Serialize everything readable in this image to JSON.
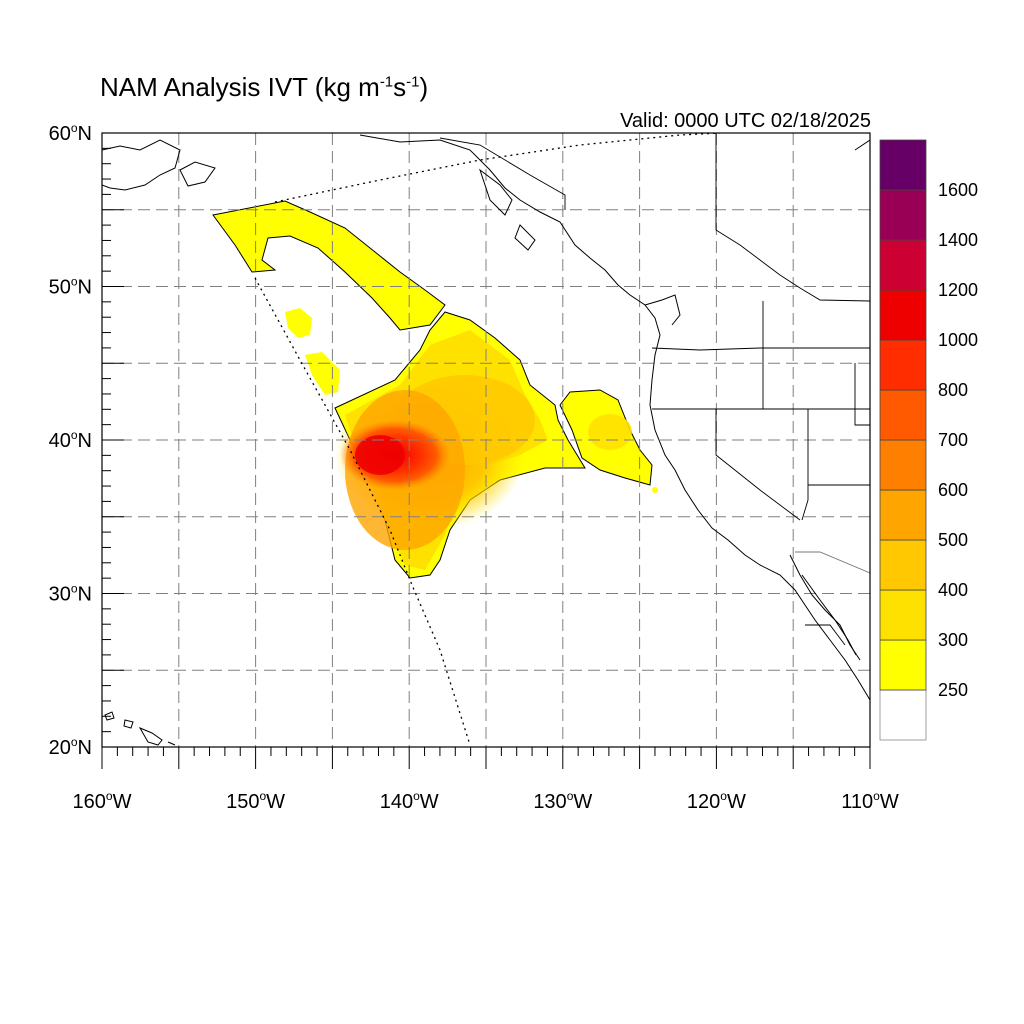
{
  "title": {
    "main": "NAM Analysis IVT (kg m",
    "sup1": "-1",
    "mid": "s",
    "sup2": "-1",
    "end": ")"
  },
  "valid_label": "Valid: 0000 UTC 02/18/2025",
  "map": {
    "lon_range": [
      -160,
      -110
    ],
    "lat_range": [
      20,
      60
    ],
    "grid": true,
    "lon_ticks": [
      {
        "value": -160,
        "label": "160",
        "suffix": "W"
      },
      {
        "value": -150,
        "label": "150",
        "suffix": "W"
      },
      {
        "value": -140,
        "label": "140",
        "suffix": "W"
      },
      {
        "value": -130,
        "label": "130",
        "suffix": "W"
      },
      {
        "value": -120,
        "label": "120",
        "suffix": "W"
      },
      {
        "value": -110,
        "label": "110",
        "suffix": "W"
      }
    ],
    "lat_ticks": [
      {
        "value": 20,
        "label": "20",
        "suffix": "N"
      },
      {
        "value": 30,
        "label": "30",
        "suffix": "N"
      },
      {
        "value": 40,
        "label": "40",
        "suffix": "N"
      },
      {
        "value": 50,
        "label": "50",
        "suffix": "N"
      },
      {
        "value": 60,
        "label": "60",
        "suffix": "N"
      }
    ],
    "degree_symbol": "o"
  },
  "colorbar": {
    "labels": [
      "250",
      "300",
      "400",
      "500",
      "600",
      "700",
      "800",
      "1000",
      "1200",
      "1400",
      "1600"
    ],
    "colors": [
      "#ffffff",
      "#ffff00",
      "#ffe100",
      "#ffc800",
      "#ffa500",
      "#ff7f00",
      "#ff5a00",
      "#ff2d00",
      "#ee0000",
      "#cc0033",
      "#990055",
      "#660066",
      "#550099"
    ]
  },
  "colors": {
    "land": "#ffffff",
    "coast": "#000000",
    "grid": "#808080"
  }
}
